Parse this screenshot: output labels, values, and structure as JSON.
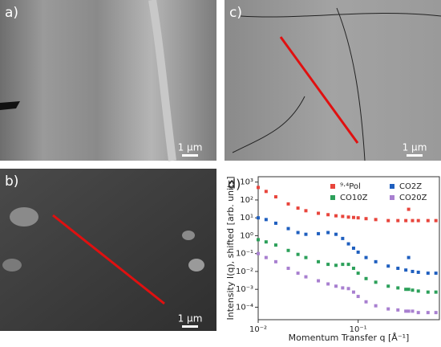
{
  "panels": [
    {
      "label": "a)",
      "scale_bar": "1 μm"
    },
    {
      "label": "b)",
      "scale_bar": "1 μm"
    },
    {
      "label": "c)",
      "scale_bar": "1 μm"
    }
  ],
  "chart_data": {
    "type": "scatter",
    "label": "d)",
    "x_label": "Momentum Transfer q [Å⁻¹]",
    "y_label": "Intensity I(q), shifted [arb. units]",
    "xscale": "log",
    "yscale": "log",
    "xlim": [
      0.01,
      0.65
    ],
    "ylim": [
      2e-05,
      2000
    ],
    "xticks": [
      {
        "value": 0.01,
        "label": "10⁻²"
      },
      {
        "value": 0.1,
        "label": "10⁻¹"
      }
    ],
    "yticks": [
      {
        "value": 0.0001,
        "label": "10⁻⁴"
      },
      {
        "value": 0.001,
        "label": "10⁻³"
      },
      {
        "value": 0.01,
        "label": "10⁻²"
      },
      {
        "value": 0.1,
        "label": "10⁻¹"
      },
      {
        "value": 1,
        "label": "10⁰"
      },
      {
        "value": 10,
        "label": "10¹"
      },
      {
        "value": 100,
        "label": "10²"
      },
      {
        "value": 1000,
        "label": "10³"
      }
    ],
    "legend": "upper right",
    "x": [
      0.01,
      0.012,
      0.015,
      0.02,
      0.025,
      0.03,
      0.04,
      0.05,
      0.06,
      0.07,
      0.08,
      0.09,
      0.1,
      0.12,
      0.15,
      0.2,
      0.25,
      0.3,
      0.32,
      0.35,
      0.4,
      0.5,
      0.6
    ],
    "series": [
      {
        "name": "⁹·⁴Pol",
        "color": "#e8453c",
        "values": [
          500,
          300,
          150,
          60,
          35,
          25,
          18,
          15,
          13,
          12,
          11,
          10.5,
          10,
          9,
          8,
          7,
          7,
          7,
          30,
          7,
          7,
          7,
          7
        ]
      },
      {
        "name": "CO2Z",
        "color": "#1f5fbf",
        "values": [
          10,
          8,
          5,
          2.5,
          1.5,
          1.2,
          1.3,
          1.5,
          1.2,
          0.7,
          0.35,
          0.2,
          0.12,
          0.06,
          0.035,
          0.02,
          0.015,
          0.012,
          0.06,
          0.01,
          0.009,
          0.008,
          0.008
        ]
      },
      {
        "name": "CO10Z",
        "color": "#2ca05a",
        "values": [
          0.6,
          0.45,
          0.3,
          0.15,
          0.09,
          0.06,
          0.035,
          0.025,
          0.022,
          0.025,
          0.025,
          0.015,
          0.008,
          0.004,
          0.0025,
          0.0015,
          0.0012,
          0.001,
          0.001,
          0.0009,
          0.0008,
          0.0007,
          0.0007
        ]
      },
      {
        "name": "CO20Z",
        "color": "#a87fd0",
        "values": [
          0.1,
          0.06,
          0.035,
          0.015,
          0.008,
          0.005,
          0.003,
          0.002,
          0.0015,
          0.0012,
          0.0011,
          0.0007,
          0.0004,
          0.0002,
          0.00012,
          8e-05,
          7e-05,
          6e-05,
          6e-05,
          6e-05,
          5e-05,
          5e-05,
          5e-05
        ]
      }
    ]
  }
}
